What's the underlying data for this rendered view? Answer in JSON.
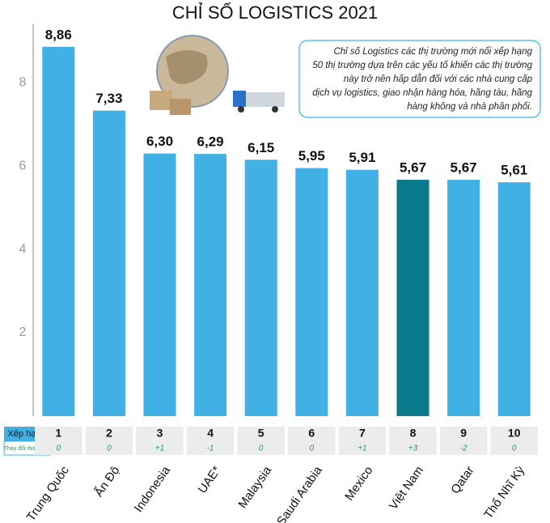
{
  "chart_data": {
    "type": "bar",
    "title": "CHỈ SỐ LOGISTICS 2021",
    "categories": [
      "Trung Quốc",
      "Ấn Độ",
      "Indonesia",
      "UAE*",
      "Malaysia",
      "Saudi Arabia",
      "Mexico",
      "Việt Nam",
      "Qatar",
      "Thổ Nhĩ Kỳ"
    ],
    "values": [
      8.86,
      7.33,
      6.3,
      6.29,
      6.15,
      5.95,
      5.91,
      5.67,
      5.67,
      5.61
    ],
    "value_labels": [
      "8,86",
      "7,33",
      "6,30",
      "6,29",
      "6,15",
      "5,95",
      "5,91",
      "5,67",
      "5,67",
      "5,61"
    ],
    "colors": [
      "#41b0e4",
      "#41b0e4",
      "#41b0e4",
      "#41b0e4",
      "#41b0e4",
      "#41b0e4",
      "#41b0e4",
      "#0b7a8c",
      "#41b0e4",
      "#41b0e4"
    ],
    "ylim": [
      0,
      9.4
    ],
    "yticks": [
      2,
      4,
      6,
      8
    ],
    "grid": false,
    "annotation": [
      "Chỉ số Logistics các thị trường mới nổi xếp hạng",
      "50 thị trường dựa trên các yếu tố khiến các thị trường",
      "này trở nên hấp dẫn đối với các nhà cung cấp",
      "dịch vụ logistics, giao nhận hàng hóa, hãng tàu, hãng",
      "hàng không và nhà phân phối."
    ],
    "table": {
      "row_labels": [
        "Xếp hạng",
        "Thay đổi thứ hạng"
      ],
      "rank": [
        1,
        2,
        3,
        4,
        5,
        6,
        7,
        8,
        9,
        10
      ],
      "rank_change": [
        "0",
        "0",
        "+1",
        "-1",
        "0",
        "0",
        "+1",
        "+3",
        "-2",
        "0"
      ]
    }
  }
}
